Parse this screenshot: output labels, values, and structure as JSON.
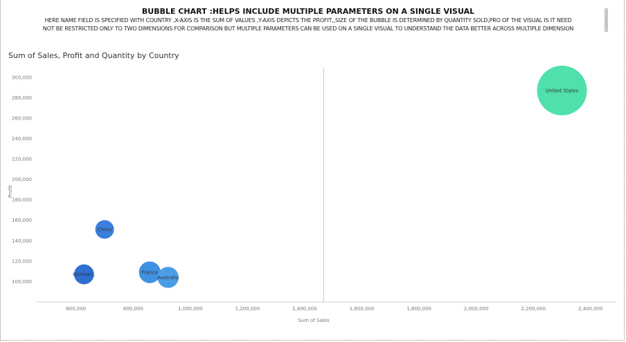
{
  "header": {
    "title": "BUBBLE CHART :HELPS INCLUDE MULTIPLE PARAMETERS ON A SINGLE VISUAL",
    "line1": "HERE NAME FIELD IS SPECIFIED WITH COUNTRY ,X-AXIS IS THE SUM OF VALUES ,Y-AXIS DEPICTS THE PROFIT,,SIZE OF THE BUBBLE IS DETERMINED BY QUANTITY SOLD,PRO OF THE VISUAL IS IT NEED",
    "line2": "NOT BE RESTRICTED ONLY TO TWO DIMENSIONS FOR COMPARISON BUT MULTIPLE PARAMETERS CAN BE USED ON A SINGLE VISUAL TO UNDERSTAND THE DATA BETTER ACROSS MULTIPLE DIMENSION"
  },
  "chart_data": {
    "type": "scatter",
    "title": "Sum of Sales, Profit and Quantity by Country",
    "xlabel": "Sum of Sales",
    "ylabel": "Profit",
    "xlim": [
      460000,
      2490000
    ],
    "ylim": [
      80000,
      310000
    ],
    "xticks": [
      600000,
      800000,
      1000000,
      1200000,
      1400000,
      1600000,
      1800000,
      2000000,
      2200000,
      2400000
    ],
    "xtick_labels": [
      "600,000",
      "800,000",
      "1,000,000",
      "1,200,000",
      "1,400,000",
      "1,600,000",
      "1,800,000",
      "2,000,000",
      "2,200,000",
      "2,400,000"
    ],
    "yticks": [
      100000,
      120000,
      140000,
      160000,
      180000,
      200000,
      220000,
      240000,
      260000,
      280000,
      300000
    ],
    "ytick_labels": [
      "100,000",
      "120,000",
      "140,000",
      "160,000",
      "180,000",
      "200,000",
      "220,000",
      "240,000",
      "260,000",
      "280,000",
      "300,000"
    ],
    "reference_line_x": 1466000,
    "grid": false,
    "points": [
      {
        "label": "China",
        "x": 700000,
        "y": 151000,
        "quantity": 7,
        "color": "#3b7fdc"
      },
      {
        "label": "German..",
        "x": 628000,
        "y": 107000,
        "quantity": 8,
        "color": "#2f6fd1"
      },
      {
        "label": "France",
        "x": 858000,
        "y": 109000,
        "quantity": 9.5,
        "color": "#4191e2"
      },
      {
        "label": "Australia",
        "x": 922000,
        "y": 104000,
        "quantity": 9,
        "color": "#4a9de6"
      },
      {
        "label": "United States",
        "x": 2300000,
        "y": 287000,
        "quantity": 50,
        "color": "#4fe0ac"
      }
    ]
  }
}
